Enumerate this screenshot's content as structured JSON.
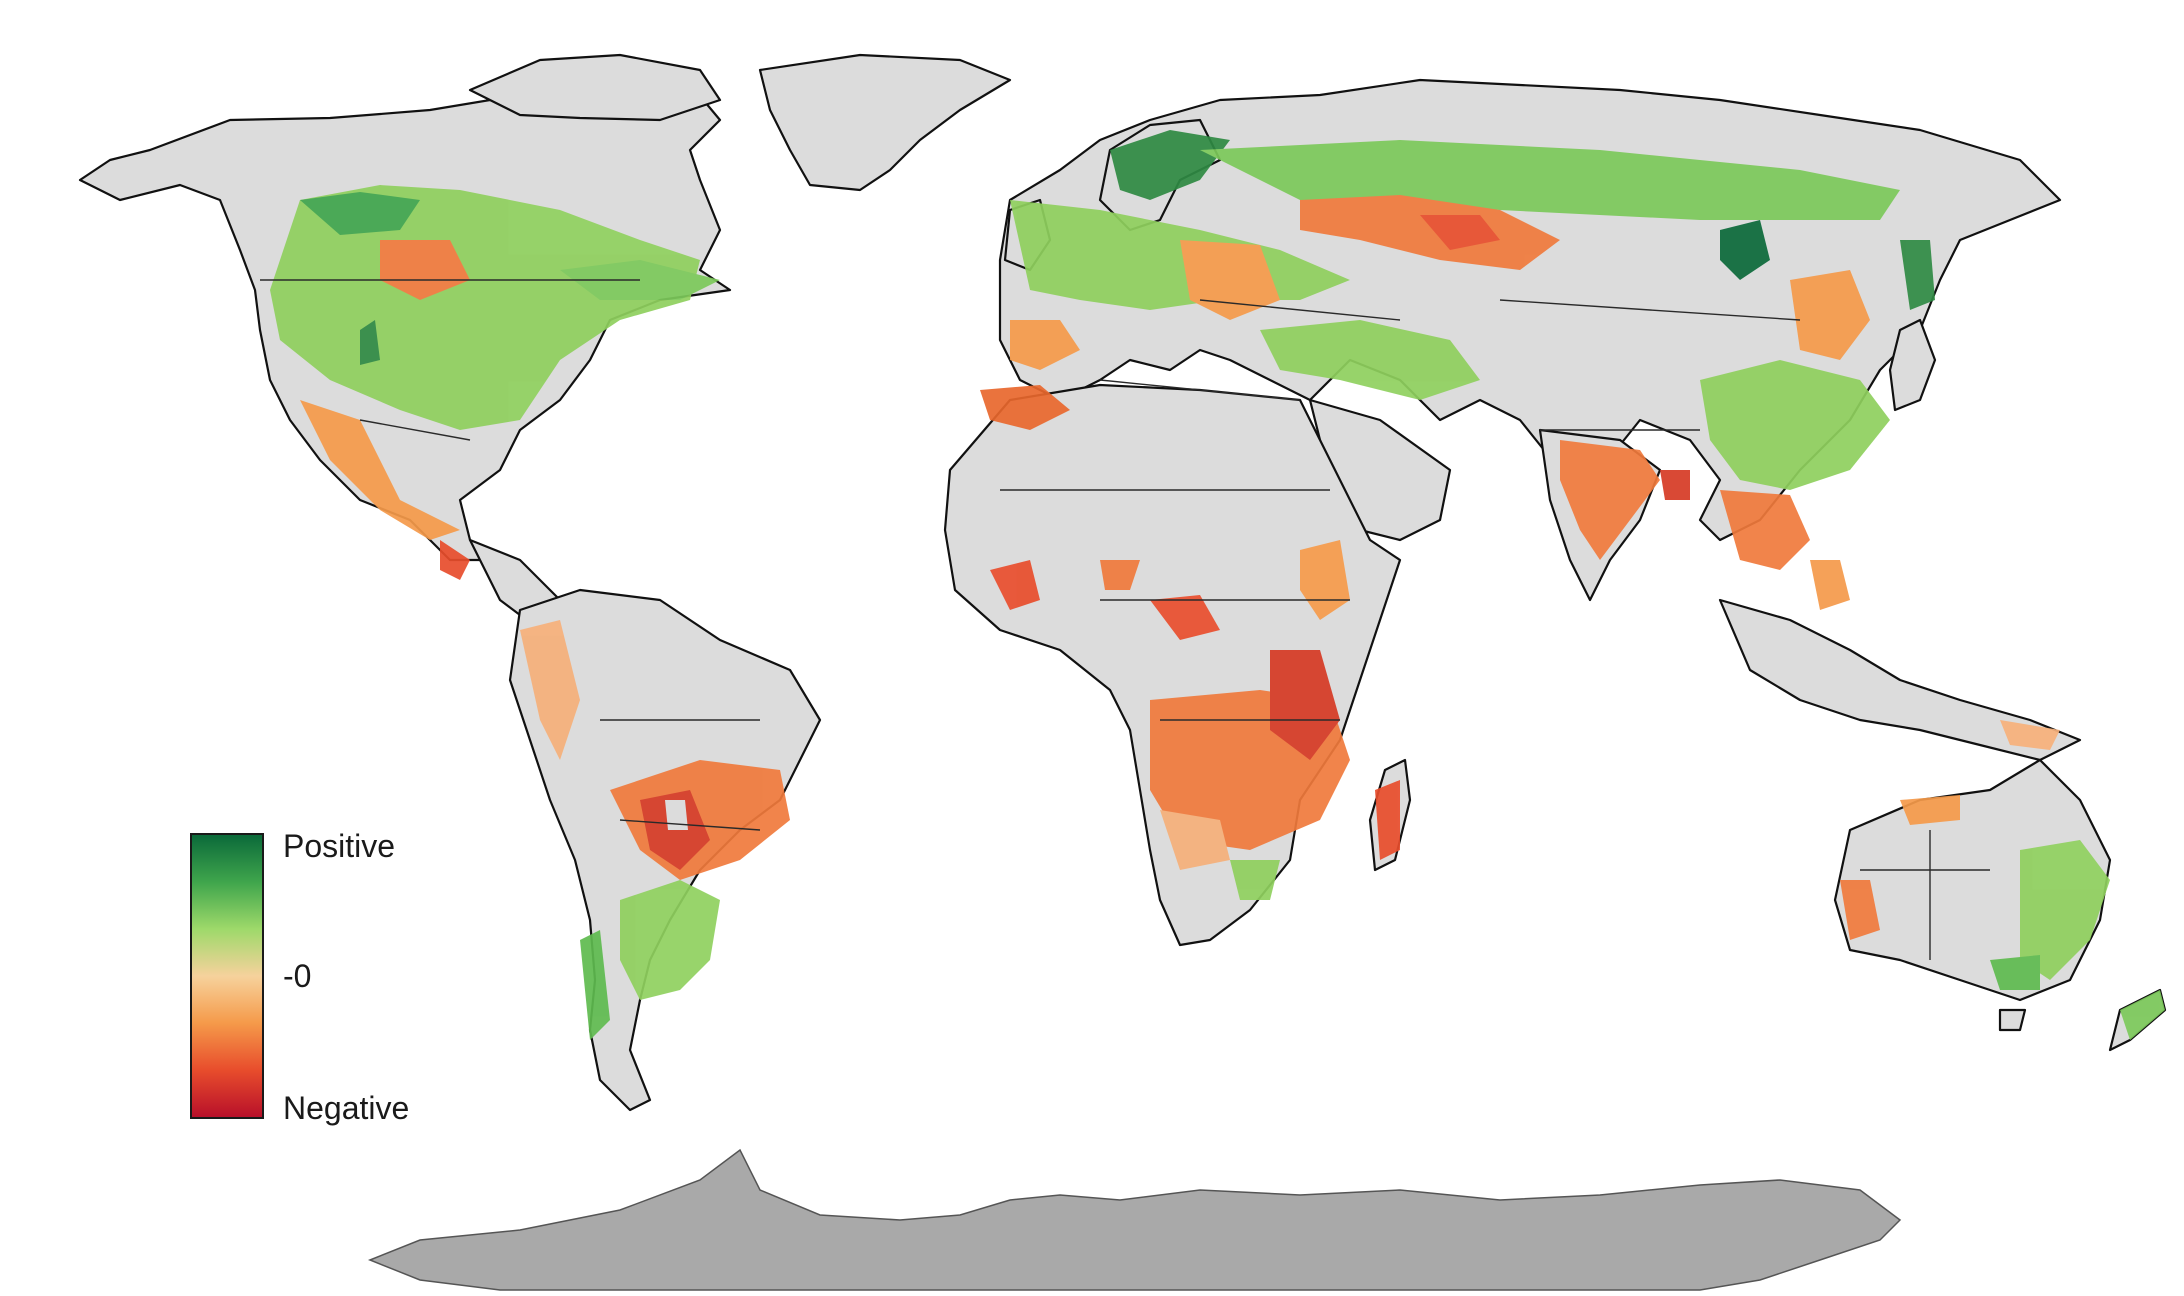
{
  "legend": {
    "positive_label": "Positive",
    "zero_label": "-0",
    "negative_label": "Negative",
    "gradient_colors": [
      "#0b6a3a",
      "#3fa54c",
      "#9ed96a",
      "#f6d29c",
      "#f59a4a",
      "#e84d2c",
      "#b8102a"
    ]
  },
  "colors": {
    "no_data_land": "#dcdcdc",
    "antarctica": "#a9a9a9",
    "coastline": "#111111",
    "strong_positive": "#0b6a3a",
    "positive": "#7cc95a",
    "neutral": "#f6d29c",
    "negative": "#f07a3c",
    "strong_negative": "#c81e24"
  }
}
